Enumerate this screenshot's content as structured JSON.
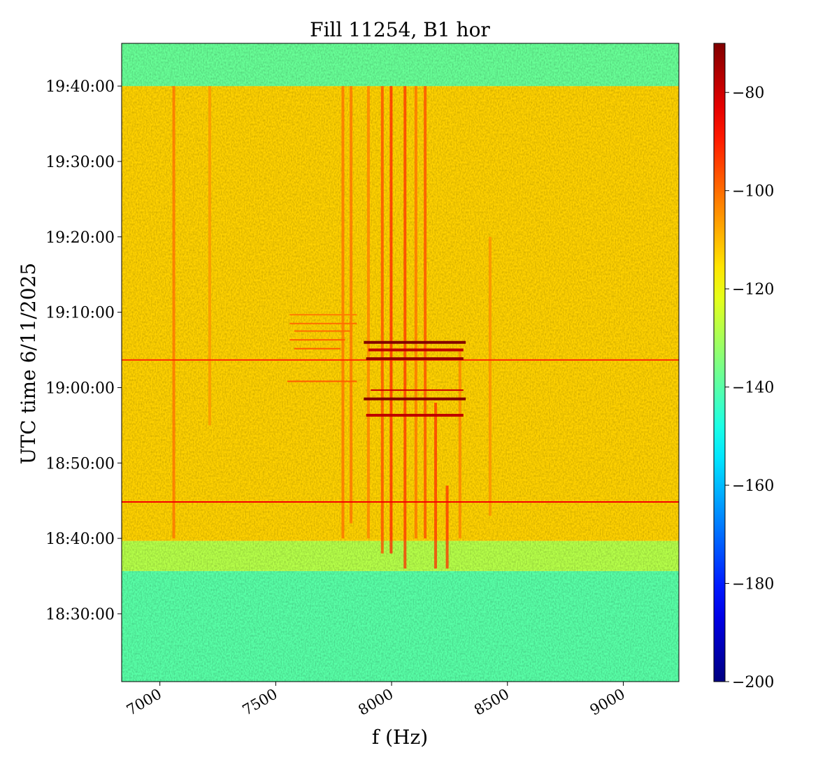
{
  "chart_data": {
    "type": "heatmap",
    "title": "Fill 11254, B1 hor",
    "xlabel": "f (Hz)",
    "ylabel": "UTC time 6/11/2025",
    "xlim": [
      6835,
      9240
    ],
    "ylim": [
      "18:21:00",
      "19:45:40"
    ],
    "x_ticks": [
      {
        "value": 7000,
        "label": "7000"
      },
      {
        "value": 7500,
        "label": "7500"
      },
      {
        "value": 8000,
        "label": "8000"
      },
      {
        "value": 8500,
        "label": "8500"
      },
      {
        "value": 9000,
        "label": "9000"
      }
    ],
    "y_ticks": [
      {
        "value": "18:30:00",
        "label": "18:30:00"
      },
      {
        "value": "18:40:00",
        "label": "18:40:00"
      },
      {
        "value": "18:50:00",
        "label": "18:50:00"
      },
      {
        "value": "19:00:00",
        "label": "19:00:00"
      },
      {
        "value": "19:10:00",
        "label": "19:10:00"
      },
      {
        "value": "19:20:00",
        "label": "19:20:00"
      },
      {
        "value": "19:30:00",
        "label": "19:30:00"
      },
      {
        "value": "19:40:00",
        "label": "19:40:00"
      }
    ],
    "colormap": "jet",
    "colorbar": {
      "range": [
        -200,
        -70
      ],
      "ticks": [
        {
          "value": -80,
          "label": "−80"
        },
        {
          "value": -100,
          "label": "−100"
        },
        {
          "value": -120,
          "label": "−120"
        },
        {
          "value": -140,
          "label": "−140"
        },
        {
          "value": -160,
          "label": "−160"
        },
        {
          "value": -180,
          "label": "−180"
        },
        {
          "value": -200,
          "label": "−200"
        }
      ]
    },
    "regions": [
      {
        "t_start": "18:21:00",
        "t_end": "18:35:40",
        "level": -140
      },
      {
        "t_start": "18:35:40",
        "t_end": "18:39:40",
        "level": -128
      },
      {
        "t_start": "18:39:40",
        "t_end": "19:40:00",
        "level": -113
      },
      {
        "t_start": "19:40:00",
        "t_end": "19:45:40",
        "level": -138
      }
    ],
    "vertical_lines": [
      {
        "f": 7060,
        "t_start": "18:40:00",
        "t_end": "19:40:00",
        "level": -100
      },
      {
        "f": 7215,
        "t_start": "18:55:00",
        "t_end": "19:40:00",
        "level": -105
      },
      {
        "f": 7790,
        "t_start": "18:40:00",
        "t_end": "19:40:00",
        "level": -100
      },
      {
        "f": 7825,
        "t_start": "18:42:00",
        "t_end": "19:40:00",
        "level": -100
      },
      {
        "f": 7900,
        "t_start": "18:40:00",
        "t_end": "19:40:00",
        "level": -102
      },
      {
        "f": 7960,
        "t_start": "18:38:00",
        "t_end": "19:40:00",
        "level": -95
      },
      {
        "f": 7998,
        "t_start": "18:38:00",
        "t_end": "19:40:00",
        "level": -90
      },
      {
        "f": 8058,
        "t_start": "18:36:00",
        "t_end": "19:40:00",
        "level": -92
      },
      {
        "f": 8105,
        "t_start": "18:40:00",
        "t_end": "19:40:00",
        "level": -100
      },
      {
        "f": 8145,
        "t_start": "18:40:00",
        "t_end": "19:40:00",
        "level": -95
      },
      {
        "f": 8190,
        "t_start": "18:36:00",
        "t_end": "18:58:00",
        "level": -92
      },
      {
        "f": 8240,
        "t_start": "18:36:00",
        "t_end": "18:47:00",
        "level": -92
      },
      {
        "f": 8295,
        "t_start": "18:40:00",
        "t_end": "19:05:00",
        "level": -102
      },
      {
        "f": 8425,
        "t_start": "18:43:00",
        "t_end": "19:20:00",
        "level": -104
      }
    ],
    "horizontal_lines": [
      {
        "t": "18:44:50",
        "f_start": 6835,
        "f_end": 9240,
        "level": -85
      },
      {
        "t": "19:03:40",
        "f_start": 6835,
        "f_end": 9240,
        "level": -92
      },
      {
        "t": "18:56:20",
        "f_start": 7890,
        "f_end": 8310,
        "level": -78
      },
      {
        "t": "18:58:30",
        "f_start": 7880,
        "f_end": 8320,
        "level": -70
      },
      {
        "t": "18:59:40",
        "f_start": 7910,
        "f_end": 8310,
        "level": -80
      },
      {
        "t": "19:00:50",
        "f_start": 7550,
        "f_end": 7850,
        "level": -98
      },
      {
        "t": "19:03:50",
        "f_start": 7890,
        "f_end": 8310,
        "level": -72
      },
      {
        "t": "19:05:00",
        "f_start": 7900,
        "f_end": 8310,
        "level": -78
      },
      {
        "t": "19:05:10",
        "f_start": 7580,
        "f_end": 7780,
        "level": -98
      },
      {
        "t": "19:06:00",
        "f_start": 7880,
        "f_end": 8320,
        "level": -70
      },
      {
        "t": "19:06:20",
        "f_start": 7560,
        "f_end": 7800,
        "level": -98
      },
      {
        "t": "19:07:30",
        "f_start": 7580,
        "f_end": 7820,
        "level": -100
      },
      {
        "t": "19:08:30",
        "f_start": 7560,
        "f_end": 7850,
        "level": -100
      },
      {
        "t": "19:09:40",
        "f_start": 7560,
        "f_end": 7850,
        "level": -102
      }
    ]
  }
}
